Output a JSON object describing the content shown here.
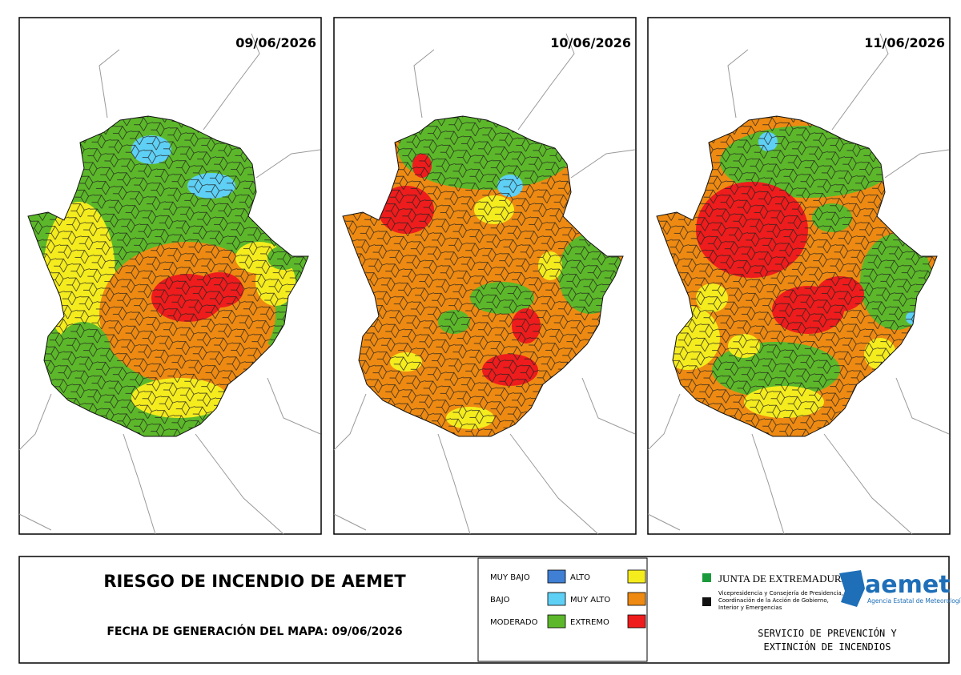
{
  "panels": [
    {
      "date": "09/06/2026"
    },
    {
      "date": "10/06/2026"
    },
    {
      "date": "11/06/2026"
    }
  ],
  "title": "RIESGO DE INCENDIO DE AEMET",
  "generation": "FECHA DE GENERACIÓN DEL MAPA: 09/06/2026",
  "legend": [
    {
      "label": "MUY BAJO",
      "color": "#3f7fd4"
    },
    {
      "label": "BAJO",
      "color": "#5fd0f5"
    },
    {
      "label": "MODERADO",
      "color": "#5cb82a"
    },
    {
      "label": "ALTO",
      "color": "#f5ec1e"
    },
    {
      "label": "MUY ALTO",
      "color": "#ee8a12"
    },
    {
      "label": "EXTREMO",
      "color": "#ee1c1c"
    }
  ],
  "logos": {
    "junta": "JUNTA DE EXTREMADURA",
    "junta_sub": [
      "Vicepresidencia y Consejería de Presidencia,",
      "Coordinación de la Acción de Gobierno,",
      "Interior y Emergencias"
    ],
    "aemet": "aemet",
    "aemet_sub": "Agencia Estatal de Meteorología"
  },
  "service": [
    "SERVICIO DE PREVENCIÓN Y",
    "EXTINCIÓN DE INCENDIOS"
  ]
}
